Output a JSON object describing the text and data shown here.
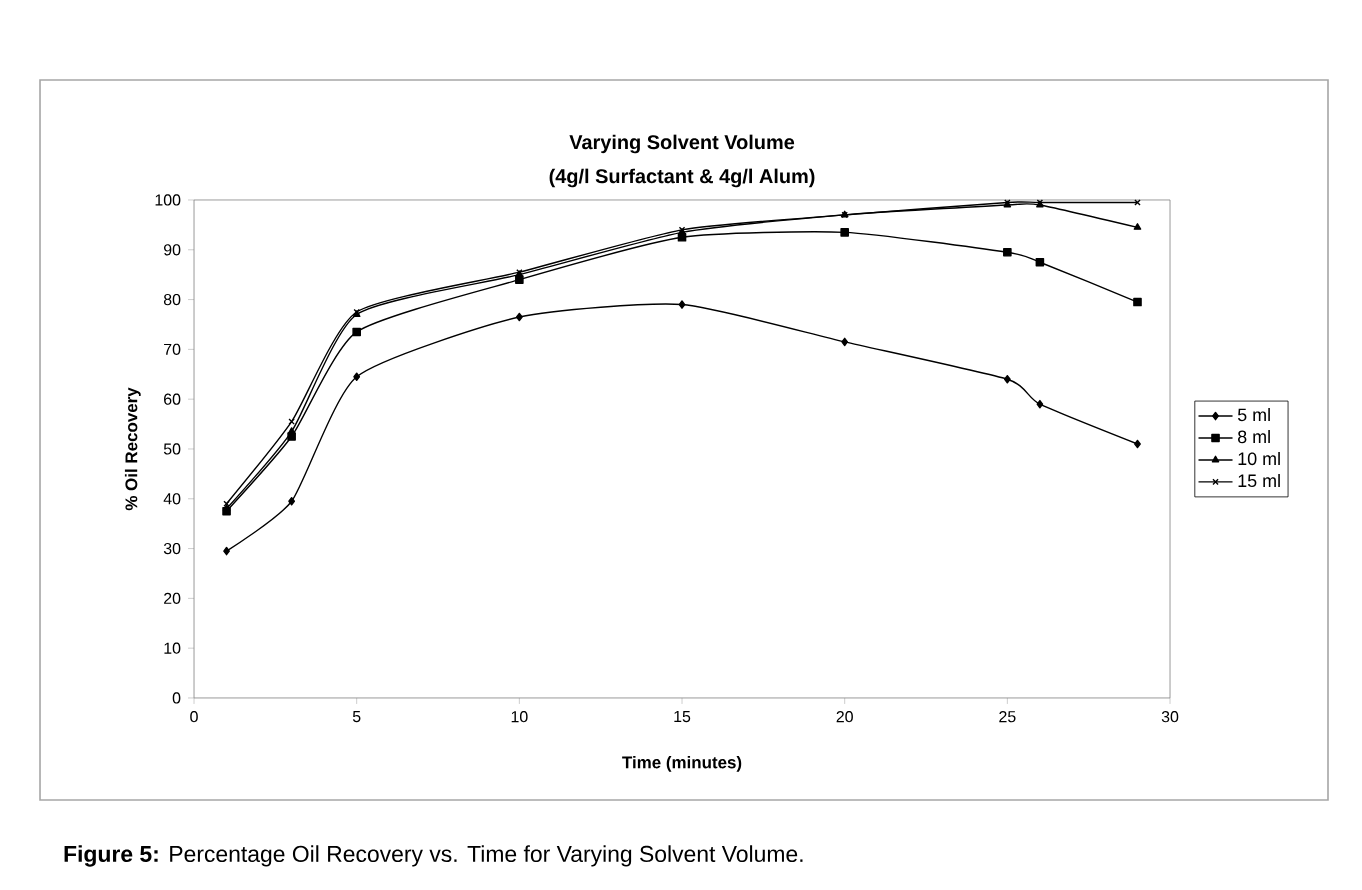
{
  "chart_data": {
    "type": "line",
    "title": "Varying Solvent Volume",
    "subtitle": "(4g/l Surfactant & 4g/l Alum)",
    "xlabel": "Time (minutes)",
    "ylabel": "% Oil Recovery",
    "x": [
      1,
      3,
      5,
      10,
      15,
      20,
      25,
      26,
      29
    ],
    "series": [
      {
        "name": "5 ml",
        "color": "#000000",
        "marker": "diamond",
        "values": [
          29.5,
          39.5,
          64.5,
          76.5,
          79,
          71.5,
          64,
          59,
          51
        ]
      },
      {
        "name": "8 ml",
        "color": "#000000",
        "marker": "square",
        "values": [
          37.5,
          52.5,
          73.5,
          84,
          92.5,
          93.5,
          89.5,
          87.5,
          79.5
        ]
      },
      {
        "name": "10 ml",
        "color": "#000000",
        "marker": "triangle",
        "values": [
          38,
          53.5,
          77,
          85,
          93.5,
          97,
          99,
          99,
          94.5
        ]
      },
      {
        "name": "15 ml",
        "color": "#000000",
        "marker": "cross",
        "values": [
          39,
          55.5,
          77.5,
          85.5,
          94,
          97,
          99.5,
          99.5,
          99.5
        ]
      }
    ],
    "xlim": [
      0,
      30
    ],
    "xticks": [
      0,
      5,
      10,
      15,
      20,
      25,
      30
    ],
    "ylim": [
      0,
      100
    ],
    "yticks": [
      0,
      10,
      20,
      30,
      40,
      50,
      60,
      70,
      80,
      90,
      100
    ],
    "grid": false,
    "legend": "right",
    "line_style": "solid",
    "annotations": [
      "**Figure 5:** Percentage Oil Recovery vs. Time for Varying Solvent Volume."
    ]
  }
}
